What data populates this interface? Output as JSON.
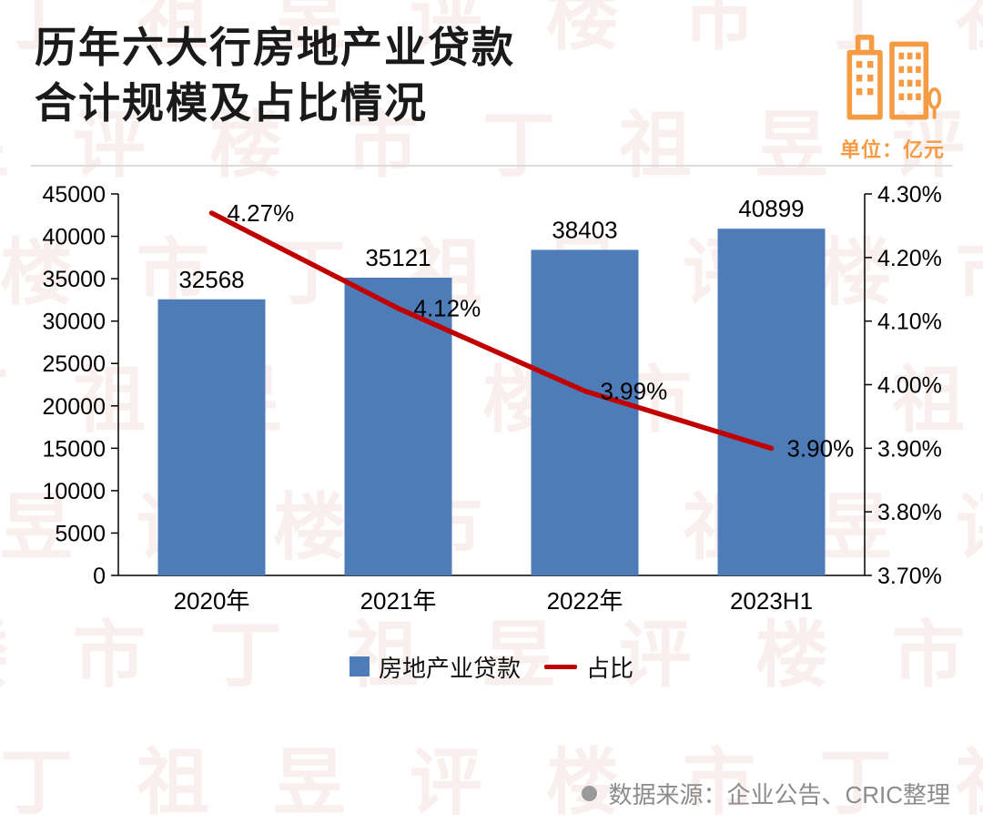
{
  "header": {
    "title_line1": "历年六大行房地产业贷款",
    "title_line2": "合计规模及占比情况",
    "unit_label": "单位：亿元"
  },
  "colors": {
    "accent_orange": "#F59B43",
    "bar_blue": "#4D7CB8",
    "line_red": "#C00000"
  },
  "chart_data": {
    "type": "bar",
    "subtype": "bar+line combo, dual axis",
    "categories": [
      "2020年",
      "2021年",
      "2022年",
      "2023H1"
    ],
    "series": [
      {
        "name": "房地产业贷款",
        "type": "bar",
        "axis": "left",
        "color": "#4D7CB8",
        "values": [
          32568,
          35121,
          38403,
          40899
        ],
        "value_labels": [
          "32568",
          "35121",
          "38403",
          "40899"
        ]
      },
      {
        "name": "占比",
        "type": "line",
        "axis": "right",
        "color": "#C00000",
        "values": [
          4.27,
          4.12,
          3.99,
          3.9
        ],
        "value_labels": [
          "4.27%",
          "4.12%",
          "3.99%",
          "3.90%"
        ]
      }
    ],
    "left_axis": {
      "min": 0,
      "max": 45000,
      "step": 5000,
      "tick_labels": [
        "0",
        "5000",
        "10000",
        "15000",
        "20000",
        "25000",
        "30000",
        "35000",
        "40000",
        "45000"
      ]
    },
    "right_axis": {
      "min": 3.7,
      "max": 4.3,
      "step": 0.1,
      "tick_labels": [
        "3.70%",
        "3.80%",
        "3.90%",
        "4.00%",
        "4.10%",
        "4.20%",
        "4.30%"
      ]
    },
    "legend": [
      {
        "label": "房地产业贷款",
        "marker": "square",
        "color": "#4D7CB8"
      },
      {
        "label": "占比",
        "marker": "line",
        "color": "#C00000"
      }
    ],
    "grid": false,
    "legend_position": "bottom"
  },
  "footer": {
    "source": "数据来源：企业公告、CRIC整理"
  },
  "watermark": {
    "text": "丁祖昱评楼市"
  }
}
